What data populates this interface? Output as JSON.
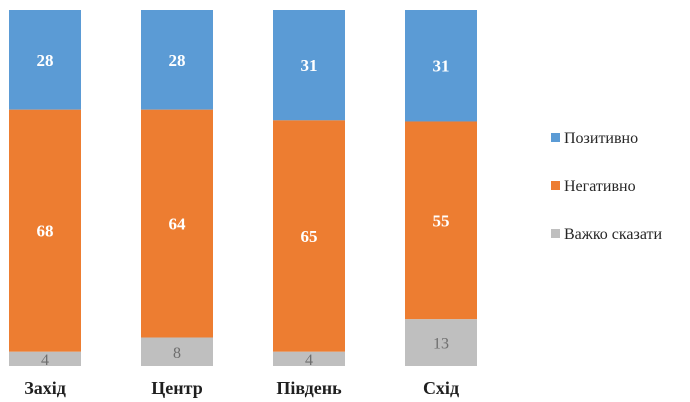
{
  "chart_data": {
    "type": "bar",
    "stacked": true,
    "normalized": true,
    "categories": [
      "Захід",
      "Центр",
      "Південь",
      "Схід"
    ],
    "series": [
      {
        "name": "Позитивно",
        "color": "#5b9bd5",
        "values": [
          28,
          28,
          31,
          31
        ]
      },
      {
        "name": "Негативно",
        "color": "#ed7d31",
        "values": [
          68,
          64,
          65,
          55
        ]
      },
      {
        "name": "Важко сказати",
        "color": "#bfbfbf",
        "values": [
          4,
          8,
          4,
          13
        ]
      }
    ],
    "title": "",
    "xlabel": "",
    "ylabel": "",
    "legend": "right",
    "grid": false
  }
}
